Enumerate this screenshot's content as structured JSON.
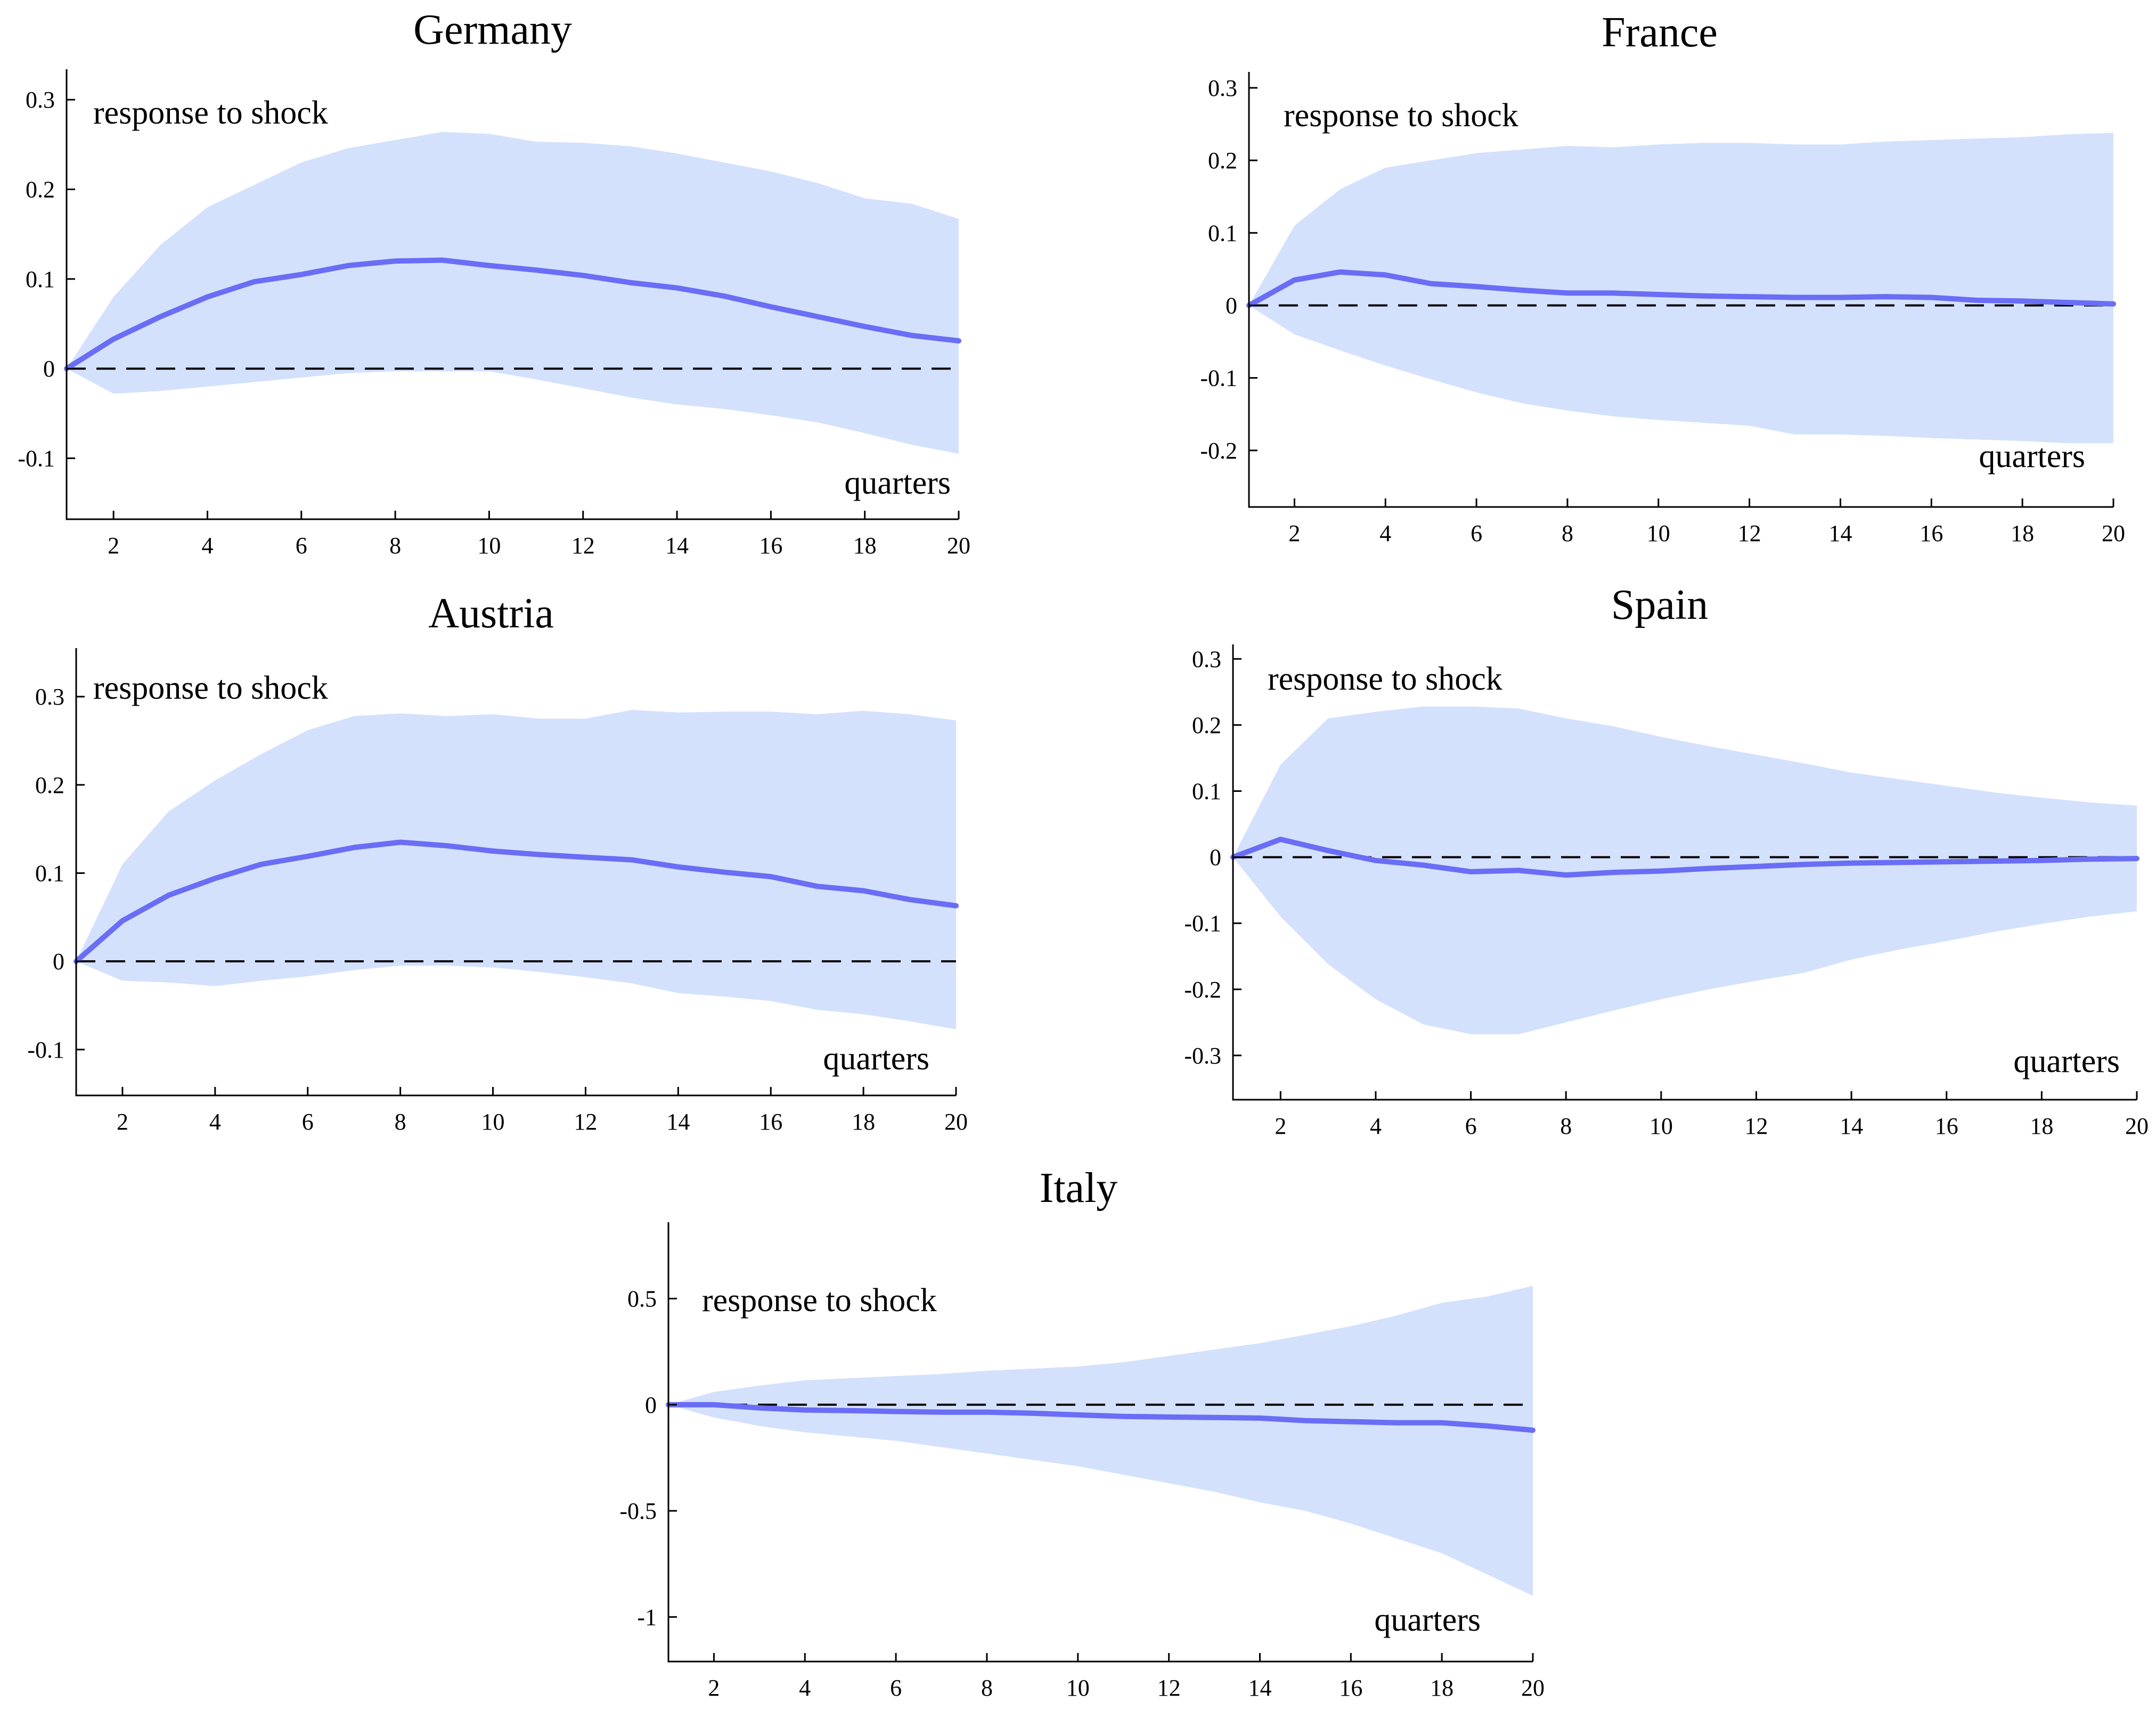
{
  "chart_data": [
    {
      "type": "line",
      "title": "Germany",
      "annotation": "response to shock",
      "xlabel": "quarters",
      "x": [
        1,
        2,
        3,
        4,
        5,
        6,
        7,
        8,
        9,
        10,
        11,
        12,
        13,
        14,
        15,
        16,
        17,
        18,
        19,
        20
      ],
      "xticks": [
        2,
        4,
        6,
        8,
        10,
        12,
        14,
        16,
        18,
        20
      ],
      "yticks": [
        -0.1,
        0,
        0.1,
        0.2,
        0.3
      ],
      "ytick_labels": [
        "-0.1",
        "0",
        "0.1",
        "0.2",
        "0.3"
      ],
      "ylim": [
        -0.168,
        0.334
      ],
      "series": [
        {
          "name": "response",
          "values": [
            0,
            0.033,
            0.058,
            0.08,
            0.097,
            0.105,
            0.115,
            0.12,
            0.121,
            0.115,
            0.11,
            0.104,
            0.096,
            0.09,
            0.081,
            0.069,
            0.058,
            0.047,
            0.037,
            0.031
          ]
        },
        {
          "name": "upper",
          "values": [
            0,
            0.08,
            0.138,
            0.18,
            0.205,
            0.23,
            0.246,
            0.255,
            0.264,
            0.262,
            0.253,
            0.252,
            0.248,
            0.24,
            0.23,
            0.22,
            0.207,
            0.19,
            0.184,
            0.167
          ]
        },
        {
          "name": "lower",
          "values": [
            0,
            -0.028,
            -0.025,
            -0.02,
            -0.015,
            -0.01,
            -0.005,
            -0.003,
            -0.003,
            -0.003,
            -0.012,
            -0.022,
            -0.032,
            -0.04,
            -0.045,
            -0.052,
            -0.06,
            -0.072,
            -0.085,
            -0.095
          ]
        }
      ]
    },
    {
      "type": "line",
      "title": "France",
      "annotation": "response to shock",
      "xlabel": "quarters",
      "x": [
        1,
        2,
        3,
        4,
        5,
        6,
        7,
        8,
        9,
        10,
        11,
        12,
        13,
        14,
        15,
        16,
        17,
        18,
        19,
        20
      ],
      "xticks": [
        2,
        4,
        6,
        8,
        10,
        12,
        14,
        16,
        18,
        20
      ],
      "yticks": [
        -0.2,
        -0.1,
        0,
        0.1,
        0.2,
        0.3
      ],
      "ytick_labels": [
        "-0.2",
        "-0.1",
        "0",
        "0.1",
        "0.2",
        "0.3"
      ],
      "ylim": [
        -0.278,
        0.322
      ],
      "series": [
        {
          "name": "response",
          "values": [
            0,
            0.035,
            0.046,
            0.042,
            0.03,
            0.026,
            0.021,
            0.017,
            0.017,
            0.015,
            0.013,
            0.012,
            0.011,
            0.011,
            0.012,
            0.011,
            0.007,
            0.006,
            0.004,
            0.002
          ]
        },
        {
          "name": "upper",
          "values": [
            0,
            0.11,
            0.16,
            0.19,
            0.2,
            0.21,
            0.215,
            0.22,
            0.218,
            0.222,
            0.224,
            0.224,
            0.222,
            0.222,
            0.226,
            0.228,
            0.23,
            0.232,
            0.236,
            0.238
          ]
        },
        {
          "name": "lower",
          "values": [
            0,
            -0.04,
            -0.062,
            -0.083,
            -0.102,
            -0.12,
            -0.135,
            -0.145,
            -0.153,
            -0.158,
            -0.162,
            -0.166,
            -0.178,
            -0.178,
            -0.18,
            -0.183,
            -0.185,
            -0.187,
            -0.19,
            -0.19
          ]
        }
      ]
    },
    {
      "type": "line",
      "title": "Austria",
      "annotation": "response to shock",
      "xlabel": "quarters",
      "x": [
        1,
        2,
        3,
        4,
        5,
        6,
        7,
        8,
        9,
        10,
        11,
        12,
        13,
        14,
        15,
        16,
        17,
        18,
        19,
        20
      ],
      "xticks": [
        2,
        4,
        6,
        8,
        10,
        12,
        14,
        16,
        18,
        20
      ],
      "yticks": [
        -0.1,
        0,
        0.1,
        0.2,
        0.3
      ],
      "ytick_labels": [
        "-0.1",
        "0",
        "0.1",
        "0.2",
        "0.3"
      ],
      "ylim": [
        -0.152,
        0.355
      ],
      "series": [
        {
          "name": "response",
          "values": [
            0,
            0.046,
            0.075,
            0.094,
            0.11,
            0.119,
            0.129,
            0.135,
            0.131,
            0.125,
            0.121,
            0.118,
            0.115,
            0.107,
            0.101,
            0.096,
            0.085,
            0.08,
            0.07,
            0.063
          ]
        },
        {
          "name": "upper",
          "values": [
            0,
            0.11,
            0.17,
            0.205,
            0.235,
            0.262,
            0.278,
            0.281,
            0.278,
            0.28,
            0.275,
            0.275,
            0.285,
            0.282,
            0.283,
            0.283,
            0.28,
            0.284,
            0.28,
            0.273
          ]
        },
        {
          "name": "lower",
          "values": [
            0,
            -0.022,
            -0.024,
            -0.028,
            -0.022,
            -0.017,
            -0.01,
            -0.005,
            -0.005,
            -0.007,
            -0.012,
            -0.018,
            -0.025,
            -0.036,
            -0.04,
            -0.045,
            -0.055,
            -0.06,
            -0.068,
            -0.077
          ]
        }
      ]
    },
    {
      "type": "line",
      "title": "Spain",
      "annotation": "response to shock",
      "xlabel": "quarters",
      "x": [
        1,
        2,
        3,
        4,
        5,
        6,
        7,
        8,
        9,
        10,
        11,
        12,
        13,
        14,
        15,
        16,
        17,
        18,
        19,
        20
      ],
      "xticks": [
        2,
        4,
        6,
        8,
        10,
        12,
        14,
        16,
        18,
        20
      ],
      "yticks": [
        -0.3,
        -0.2,
        -0.1,
        0,
        0.1,
        0.2,
        0.3
      ],
      "ytick_labels": [
        "-0.3",
        "-0.2",
        "-0.1",
        "0",
        "0.1",
        "0.2",
        "0.3"
      ],
      "ylim": [
        -0.367,
        0.322
      ],
      "series": [
        {
          "name": "response",
          "values": [
            0,
            0.027,
            0.01,
            -0.005,
            -0.012,
            -0.022,
            -0.02,
            -0.027,
            -0.023,
            -0.021,
            -0.017,
            -0.014,
            -0.011,
            -0.009,
            -0.008,
            -0.007,
            -0.006,
            -0.005,
            -0.003,
            -0.002
          ]
        },
        {
          "name": "upper",
          "values": [
            0,
            0.14,
            0.21,
            0.22,
            0.228,
            0.228,
            0.225,
            0.21,
            0.198,
            0.182,
            0.168,
            0.155,
            0.142,
            0.128,
            0.118,
            0.108,
            0.098,
            0.09,
            0.083,
            0.078
          ]
        },
        {
          "name": "lower",
          "values": [
            0,
            -0.09,
            -0.162,
            -0.215,
            -0.253,
            -0.268,
            -0.268,
            -0.25,
            -0.232,
            -0.215,
            -0.2,
            -0.187,
            -0.175,
            -0.155,
            -0.14,
            -0.127,
            -0.113,
            -0.101,
            -0.09,
            -0.082
          ]
        }
      ]
    },
    {
      "type": "line",
      "title": "Italy",
      "annotation": "response to shock",
      "xlabel": "quarters",
      "x": [
        1,
        2,
        3,
        4,
        5,
        6,
        7,
        8,
        9,
        10,
        11,
        12,
        13,
        14,
        15,
        16,
        17,
        18,
        19,
        20
      ],
      "xticks": [
        2,
        4,
        6,
        8,
        10,
        12,
        14,
        16,
        18,
        20
      ],
      "yticks": [
        -1,
        -0.5,
        0,
        0.5
      ],
      "ytick_labels": [
        "-1",
        "-0.5",
        "0",
        "0.5"
      ],
      "ylim": [
        -1.21,
        0.86
      ],
      "series": [
        {
          "name": "response",
          "values": [
            0,
            0,
            -0.015,
            -0.025,
            -0.028,
            -0.032,
            -0.035,
            -0.035,
            -0.04,
            -0.048,
            -0.055,
            -0.058,
            -0.06,
            -0.063,
            -0.075,
            -0.08,
            -0.085,
            -0.085,
            -0.1,
            -0.12
          ]
        },
        {
          "name": "upper",
          "values": [
            0,
            0.06,
            0.09,
            0.115,
            0.125,
            0.135,
            0.145,
            0.16,
            0.17,
            0.18,
            0.2,
            0.23,
            0.26,
            0.29,
            0.33,
            0.37,
            0.42,
            0.48,
            0.51,
            0.56
          ]
        },
        {
          "name": "lower",
          "values": [
            0,
            -0.06,
            -0.1,
            -0.13,
            -0.15,
            -0.17,
            -0.2,
            -0.23,
            -0.26,
            -0.29,
            -0.33,
            -0.37,
            -0.41,
            -0.46,
            -0.5,
            -0.56,
            -0.63,
            -0.7,
            -0.8,
            -0.9
          ]
        }
      ]
    }
  ]
}
